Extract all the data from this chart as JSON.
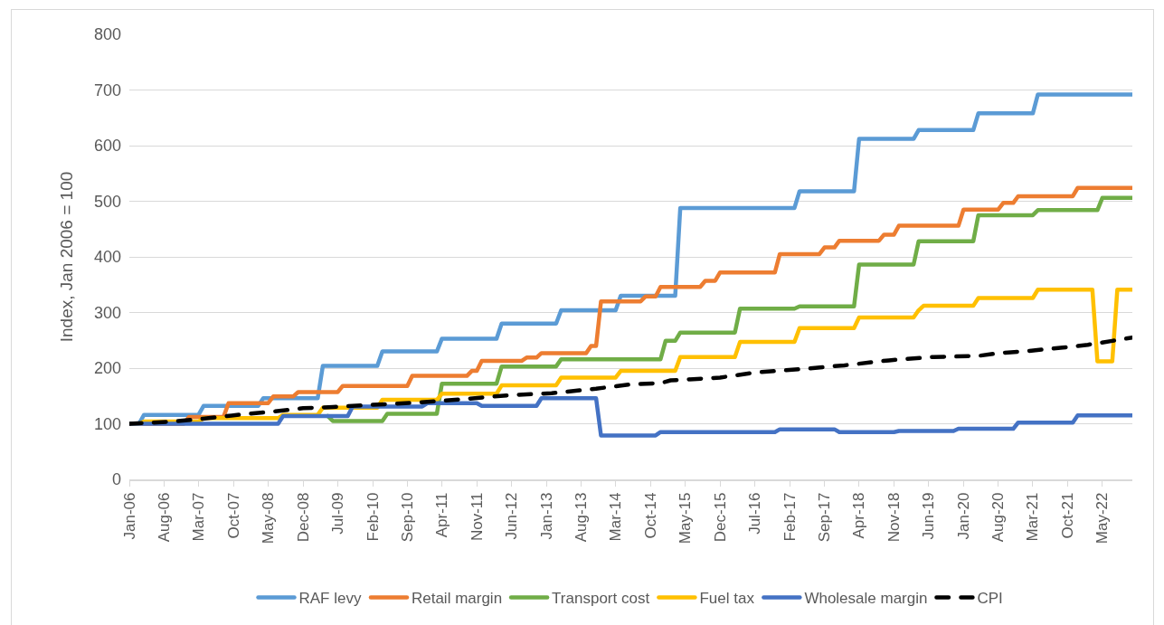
{
  "chart_data": {
    "type": "line",
    "ylabel": "Index, Jan 2006 = 100",
    "xlim": [
      "2006-01",
      "2022-11"
    ],
    "xticks": [
      {
        "value": "2006-01",
        "label": "Jan-06"
      },
      {
        "value": "2006-08",
        "label": "Aug-06"
      },
      {
        "value": "2007-03",
        "label": "Mar-07"
      },
      {
        "value": "2007-10",
        "label": "Oct-07"
      },
      {
        "value": "2008-05",
        "label": "May-08"
      },
      {
        "value": "2008-12",
        "label": "Dec-08"
      },
      {
        "value": "2009-07",
        "label": "Jul-09"
      },
      {
        "value": "2010-02",
        "label": "Feb-10"
      },
      {
        "value": "2010-09",
        "label": "Sep-10"
      },
      {
        "value": "2011-04",
        "label": "Apr-11"
      },
      {
        "value": "2011-11",
        "label": "Nov-11"
      },
      {
        "value": "2012-06",
        "label": "Jun-12"
      },
      {
        "value": "2013-01",
        "label": "Jan-13"
      },
      {
        "value": "2013-08",
        "label": "Aug-13"
      },
      {
        "value": "2014-03",
        "label": "Mar-14"
      },
      {
        "value": "2014-10",
        "label": "Oct-14"
      },
      {
        "value": "2015-05",
        "label": "May-15"
      },
      {
        "value": "2015-12",
        "label": "Dec-15"
      },
      {
        "value": "2016-07",
        "label": "Jul-16"
      },
      {
        "value": "2017-02",
        "label": "Feb-17"
      },
      {
        "value": "2017-09",
        "label": "Sep-17"
      },
      {
        "value": "2018-04",
        "label": "Apr-18"
      },
      {
        "value": "2018-11",
        "label": "Nov-18"
      },
      {
        "value": "2019-06",
        "label": "Jun-19"
      },
      {
        "value": "2020-01",
        "label": "Jan-20"
      },
      {
        "value": "2020-08",
        "label": "Aug-20"
      },
      {
        "value": "2021-03",
        "label": "Mar-21"
      },
      {
        "value": "2021-10",
        "label": "Oct-21"
      },
      {
        "value": "2022-05",
        "label": "May-22"
      }
    ],
    "ylim": [
      0,
      800
    ],
    "yticks": [
      0,
      100,
      200,
      300,
      400,
      500,
      600,
      700,
      800
    ],
    "grid": "y",
    "legend": "bottom",
    "line_style": "solid",
    "series": [
      {
        "name": "RAF levy",
        "color": "#5b9bd5",
        "x": [
          "2006-01",
          "2006-03",
          "2006-04",
          "2007-03",
          "2007-04",
          "2008-03",
          "2008-04",
          "2009-03",
          "2009-04",
          "2010-03",
          "2010-04",
          "2011-03",
          "2011-04",
          "2012-03",
          "2012-04",
          "2013-03",
          "2013-04",
          "2014-03",
          "2014-04",
          "2015-03",
          "2015-04",
          "2017-03",
          "2017-04",
          "2018-03",
          "2018-04",
          "2019-03",
          "2019-04",
          "2020-03",
          "2020-04",
          "2021-03",
          "2021-04",
          "2022-11"
        ],
        "values": [
          100,
          100,
          116,
          116,
          132,
          132,
          146,
          146,
          204,
          204,
          230,
          230,
          253,
          253,
          280,
          280,
          304,
          304,
          330,
          330,
          488,
          488,
          518,
          518,
          612,
          612,
          628,
          628,
          658,
          658,
          692,
          692
        ]
      },
      {
        "name": "Retail margin",
        "color": "#ed7d31",
        "x": [
          "2006-01",
          "2006-12",
          "2007-01",
          "2007-08",
          "2007-09",
          "2008-05",
          "2008-06",
          "2008-10",
          "2008-11",
          "2009-07",
          "2009-08",
          "2010-09",
          "2010-10",
          "2011-09",
          "2011-10",
          "2011-11",
          "2011-12",
          "2012-08",
          "2012-09",
          "2012-11",
          "2012-12",
          "2013-09",
          "2013-10",
          "2013-11",
          "2013-12",
          "2014-08",
          "2014-09",
          "2014-11",
          "2014-12",
          "2015-08",
          "2015-09",
          "2015-11",
          "2015-12",
          "2016-11",
          "2016-12",
          "2017-08",
          "2017-09",
          "2017-11",
          "2017-12",
          "2018-08",
          "2018-09",
          "2018-11",
          "2018-12",
          "2019-12",
          "2020-01",
          "2020-08",
          "2020-09",
          "2020-11",
          "2020-12",
          "2021-11",
          "2021-12",
          "2022-11"
        ],
        "values": [
          100,
          100,
          112,
          112,
          137,
          137,
          149,
          149,
          157,
          157,
          168,
          168,
          186,
          186,
          195,
          195,
          213,
          213,
          219,
          219,
          227,
          227,
          240,
          240,
          320,
          320,
          329,
          329,
          346,
          346,
          357,
          357,
          372,
          372,
          405,
          405,
          417,
          417,
          429,
          429,
          440,
          440,
          456,
          456,
          485,
          485,
          497,
          497,
          509,
          509,
          524,
          524
        ]
      },
      {
        "name": "Transport cost",
        "color": "#70ad47",
        "x": [
          "2009-05",
          "2009-06",
          "2010-04",
          "2010-05",
          "2011-03",
          "2011-04",
          "2012-03",
          "2012-04",
          "2013-03",
          "2013-04",
          "2014-12",
          "2015-01",
          "2015-03",
          "2015-04",
          "2016-03",
          "2016-04",
          "2017-03",
          "2017-04",
          "2018-03",
          "2018-04",
          "2019-03",
          "2019-04",
          "2020-03",
          "2020-04",
          "2021-03",
          "2021-04",
          "2022-04",
          "2022-05",
          "2022-11"
        ],
        "values": [
          114,
          105,
          105,
          118,
          118,
          172,
          172,
          203,
          203,
          216,
          216,
          249,
          249,
          264,
          264,
          307,
          307,
          311,
          311,
          386,
          386,
          428,
          428,
          475,
          475,
          484,
          484,
          506,
          506
        ]
      },
      {
        "name": "Fuel tax",
        "color": "#ffc000",
        "x": [
          "2006-01",
          "2006-03",
          "2006-04",
          "2007-03",
          "2007-04",
          "2008-07",
          "2008-08",
          "2009-03",
          "2009-04",
          "2010-03",
          "2010-04",
          "2011-03",
          "2011-04",
          "2012-03",
          "2012-04",
          "2013-03",
          "2013-04",
          "2014-03",
          "2014-04",
          "2015-03",
          "2015-04",
          "2016-03",
          "2016-04",
          "2017-03",
          "2017-04",
          "2018-03",
          "2018-04",
          "2019-03",
          "2019-04",
          "2019-05",
          "2020-03",
          "2020-04",
          "2021-03",
          "2021-04",
          "2022-03",
          "2022-04",
          "2022-07",
          "2022-08",
          "2022-11"
        ],
        "values": [
          100,
          100,
          104,
          104,
          110,
          110,
          116,
          116,
          129,
          129,
          143,
          143,
          154,
          154,
          169,
          169,
          183,
          183,
          195,
          195,
          220,
          220,
          247,
          247,
          272,
          272,
          291,
          291,
          304,
          312,
          312,
          326,
          326,
          341,
          341,
          212,
          212,
          341,
          341
        ]
      },
      {
        "name": "Wholesale margin",
        "color": "#4472c4",
        "x": [
          "2006-01",
          "2008-07",
          "2008-08",
          "2009-09",
          "2009-10",
          "2010-12",
          "2011-01",
          "2011-11",
          "2011-12",
          "2012-11",
          "2012-12",
          "2013-11",
          "2013-12",
          "2014-11",
          "2014-12",
          "2016-11",
          "2016-12",
          "2017-11",
          "2017-12",
          "2018-11",
          "2018-12",
          "2019-11",
          "2019-12",
          "2020-11",
          "2020-12",
          "2021-11",
          "2021-12",
          "2022-11"
        ],
        "values": [
          100,
          100,
          114,
          114,
          131,
          131,
          137,
          137,
          132,
          132,
          146,
          146,
          79,
          79,
          85,
          85,
          90,
          90,
          85,
          85,
          87,
          87,
          91,
          91,
          102,
          102,
          115,
          115
        ]
      },
      {
        "name": "CPI",
        "color": "#000000",
        "line_style": "dashed",
        "x": [
          "2006-01",
          "2006-10",
          "2007-05",
          "2007-12",
          "2008-06",
          "2008-12",
          "2009-06",
          "2010-02",
          "2010-11",
          "2011-08",
          "2012-05",
          "2013-02",
          "2013-11",
          "2014-06",
          "2014-12",
          "2015-02",
          "2015-12",
          "2016-07",
          "2017-04",
          "2018-01",
          "2018-10",
          "2019-07",
          "2020-04",
          "2020-08",
          "2021-01",
          "2021-09",
          "2022-02",
          "2022-07",
          "2022-11"
        ],
        "values": [
          100,
          104,
          110,
          117,
          122,
          128,
          130,
          134,
          138,
          144,
          151,
          155,
          163,
          171,
          173,
          178,
          183,
          192,
          198,
          205,
          214,
          220,
          222,
          227,
          230,
          237,
          242,
          249,
          255
        ]
      }
    ]
  }
}
